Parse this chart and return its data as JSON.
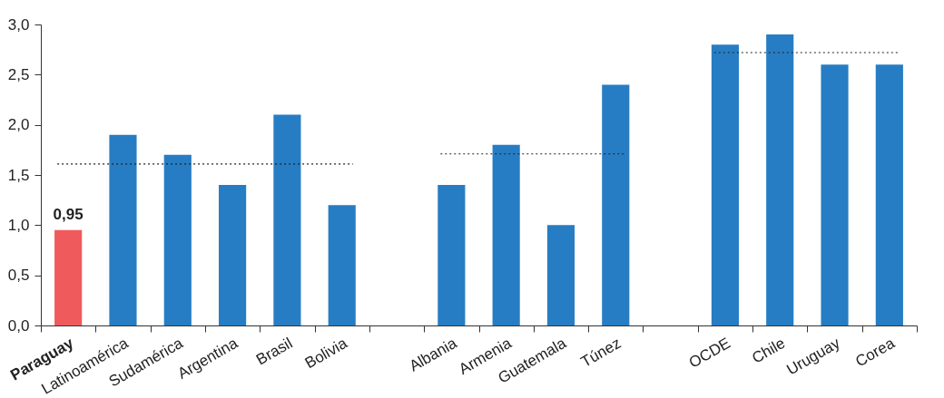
{
  "chart_data": {
    "type": "bar",
    "categories": [
      "Paraguay",
      "Latinoamérica",
      "Sudamérica",
      "Argentina",
      "Brasil",
      "Bolivia",
      null,
      "Albania",
      "Armenia",
      "Guatemala",
      "Túnez",
      null,
      "OCDE",
      "Chile",
      "Uruguay",
      "Corea"
    ],
    "values": [
      0.95,
      1.9,
      1.7,
      1.4,
      2.1,
      1.2,
      null,
      1.4,
      1.8,
      1.0,
      2.4,
      null,
      2.8,
      2.9,
      2.6,
      2.6
    ],
    "colors": [
      "#ef5a5d",
      "#277dc3",
      "#277dc3",
      "#277dc3",
      "#277dc3",
      "#277dc3",
      "#277dc3",
      "#277dc3",
      "#277dc3",
      "#277dc3",
      "#277dc3",
      "#277dc3",
      "#277dc3",
      "#277dc3",
      "#277dc3",
      "#277dc3"
    ],
    "value_labels": [
      "0,95",
      null,
      null,
      null,
      null,
      null,
      null,
      null,
      null,
      null,
      null,
      null,
      null,
      null,
      null,
      null
    ],
    "ylim": [
      0,
      3
    ],
    "yticks": [
      {
        "value": 0,
        "label": "0,0"
      },
      {
        "value": 0.5,
        "label": "0,5"
      },
      {
        "value": 1,
        "label": "1,0"
      },
      {
        "value": 1.5,
        "label": "1,5"
      },
      {
        "value": 2,
        "label": "2,0"
      },
      {
        "value": 2.5,
        "label": "2,5"
      },
      {
        "value": 3,
        "label": "3,0"
      }
    ],
    "ref_lines": [
      {
        "axis": "y",
        "value": 1.61,
        "color": "#222222",
        "line_style": "dotted"
      },
      {
        "axis": "y",
        "value": 1.71,
        "color": "#222222",
        "line_style": "dotted"
      },
      {
        "axis": "y",
        "value": 2.72,
        "color": "#222222",
        "line_style": "dotted"
      }
    ],
    "grid": false
  }
}
